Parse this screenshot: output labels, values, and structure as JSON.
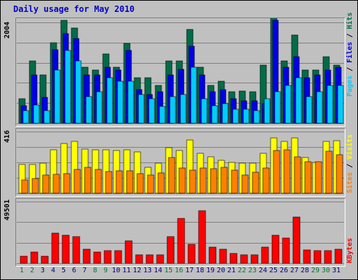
{
  "title": "Daily usage for May 2010",
  "colors": {
    "background": "#C0C0C0",
    "hits": "#006C48",
    "files": "#0000E6",
    "pages": "#00CCFF",
    "visits": "#FFFF00",
    "sites": "#FF8000",
    "kbytes": "#FF0000",
    "title": "#0000C8",
    "weekday_label": "#000080",
    "weekend_label": "#00763A",
    "gridline": "#808080"
  },
  "panels": {
    "top": {
      "max_label": "2004",
      "legend": [
        "Pages",
        "Files",
        "Hits"
      ]
    },
    "middle": {
      "max_label": "416",
      "legend": [
        "Sites",
        "Visits"
      ]
    },
    "bottom": {
      "max_label": "49501",
      "legend": [
        "KBytes"
      ]
    }
  },
  "chart_data": {
    "type": "bar",
    "title": "Daily usage for May 2010",
    "categories": [
      "1",
      "2",
      "3",
      "4",
      "5",
      "6",
      "7",
      "8",
      "9",
      "10",
      "11",
      "12",
      "13",
      "14",
      "15",
      "16",
      "17",
      "18",
      "19",
      "20",
      "21",
      "22",
      "23",
      "24",
      "25",
      "26",
      "27",
      "28",
      "29",
      "30",
      "31"
    ],
    "weekend_days": [
      1,
      2,
      8,
      9,
      15,
      16,
      22,
      23,
      29,
      30
    ],
    "series": [
      {
        "name": "Hits",
        "panel": "top",
        "values": [
          494,
          1240,
          967,
          1601,
          2049,
          1892,
          1116,
          1053,
          1381,
          1116,
          1585,
          904,
          904,
          757,
          1233,
          1233,
          1862,
          1116,
          757,
          831,
          622,
          643,
          622,
          1159,
          2248,
          1240,
          1750,
          1053,
          1053,
          1320,
          1159
        ]
      },
      {
        "name": "Files",
        "panel": "top",
        "values": [
          350,
          967,
          511,
          1468,
          1785,
          1680,
          967,
          967,
          1116,
          1053,
          1441,
          667,
          573,
          622,
          967,
          1068,
          1533,
          967,
          622,
          667,
          490,
          441,
          441,
          392,
          2049,
          1116,
          1320,
          904,
          967,
          1053,
          1116
        ]
      },
      {
        "name": "Pages",
        "panel": "top",
        "values": [
          253,
          356,
          253,
          1053,
          1441,
          1240,
          530,
          622,
          904,
          831,
          831,
          573,
          490,
          330,
          530,
          573,
          1116,
          490,
          350,
          392,
          272,
          272,
          253,
          490,
          622,
          757,
          904,
          530,
          622,
          757,
          757
        ]
      },
      {
        "name": "Visits",
        "panel": "middle",
        "values": [
          195,
          195,
          203,
          295,
          334,
          349,
          300,
          295,
          295,
          286,
          291,
          281,
          175,
          203,
          305,
          286,
          361,
          268,
          246,
          222,
          208,
          203,
          203,
          271,
          373,
          349,
          373,
          243,
          208,
          349,
          354
        ]
      },
      {
        "name": "Sites",
        "panel": "middle",
        "values": [
          92,
          101,
          121,
          126,
          131,
          160,
          174,
          160,
          145,
          150,
          150,
          131,
          121,
          136,
          242,
          169,
          155,
          169,
          165,
          174,
          155,
          121,
          140,
          169,
          286,
          295,
          247,
          213,
          213,
          282,
          262
        ]
      },
      {
        "name": "KBytes",
        "panel": "bottom",
        "values": [
          5420,
          8941,
          5905,
          24115,
          22468,
          21218,
          11328,
          8941,
          9848,
          9848,
          17922,
          6502,
          6502,
          7013,
          21218,
          36209,
          15316,
          41971,
          12837,
          11328,
          7700,
          6502,
          7013,
          12837,
          22468,
          20071,
          37346,
          10528,
          9848,
          9848,
          11328
        ]
      }
    ],
    "panel_max": {
      "top": 2004,
      "middle": 416,
      "bottom": 49501
    },
    "grid": true
  }
}
